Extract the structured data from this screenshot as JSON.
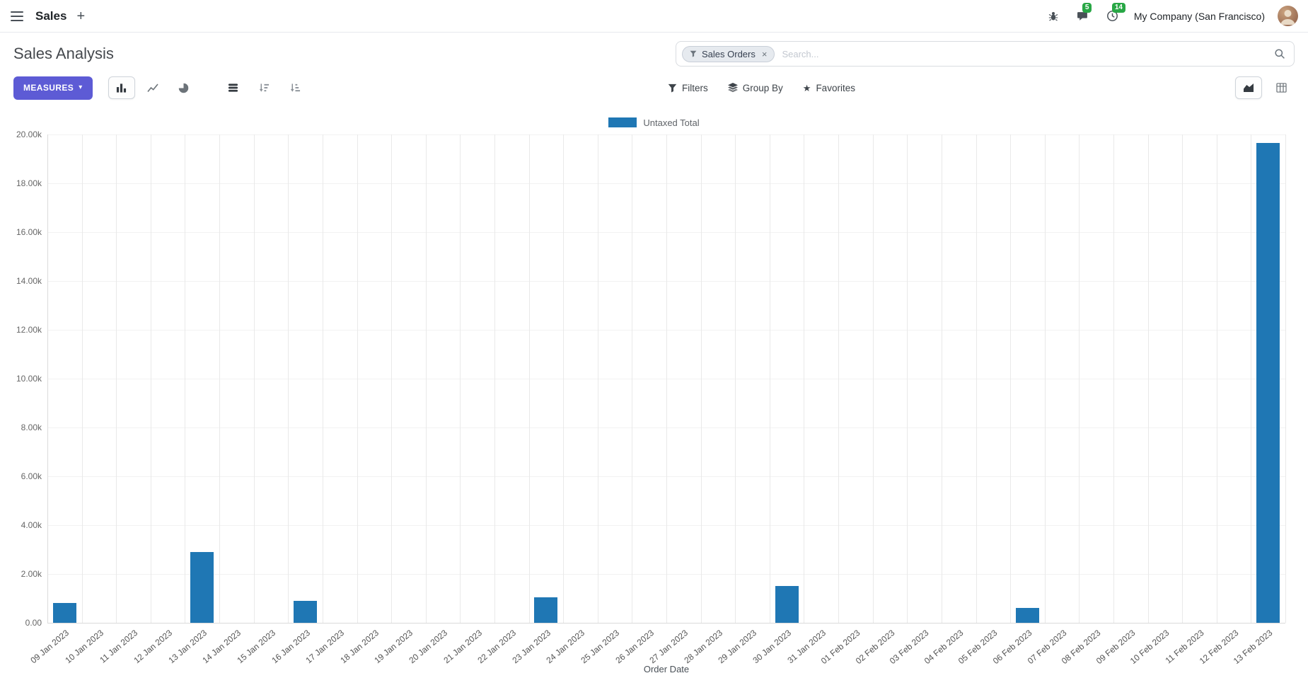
{
  "colors": {
    "primary": "#5d5bd5",
    "badge": "#28a745",
    "bar": "#1f77b4"
  },
  "glyphs": {
    "plus": "+",
    "caret_down": "▾",
    "close": "×",
    "star": "★"
  },
  "navbar": {
    "app_name": "Sales",
    "messages_badge": "5",
    "activities_badge": "14",
    "company": "My Company (San Francisco)"
  },
  "control_panel": {
    "title": "Sales Analysis",
    "search": {
      "facet_label": "Sales Orders",
      "placeholder": "Search..."
    },
    "measures_label": "MEASURES",
    "filters_label": "Filters",
    "group_by_label": "Group By",
    "favorites_label": "Favorites"
  },
  "chart_data": {
    "type": "bar",
    "title": "",
    "xlabel": "Order Date",
    "ylabel": "",
    "ylim": [
      0,
      20000
    ],
    "ytick_values": [
      0,
      2000,
      4000,
      6000,
      8000,
      10000,
      12000,
      14000,
      16000,
      18000,
      20000
    ],
    "ytick_labels": [
      "0.00",
      "2.00k",
      "4.00k",
      "6.00k",
      "8.00k",
      "10.00k",
      "12.00k",
      "14.00k",
      "16.00k",
      "18.00k",
      "20.00k"
    ],
    "legend_position": "top",
    "grid": true,
    "categories": [
      "09 Jan 2023",
      "10 Jan 2023",
      "11 Jan 2023",
      "12 Jan 2023",
      "13 Jan 2023",
      "14 Jan 2023",
      "15 Jan 2023",
      "16 Jan 2023",
      "17 Jan 2023",
      "18 Jan 2023",
      "19 Jan 2023",
      "20 Jan 2023",
      "21 Jan 2023",
      "22 Jan 2023",
      "23 Jan 2023",
      "24 Jan 2023",
      "25 Jan 2023",
      "26 Jan 2023",
      "27 Jan 2023",
      "28 Jan 2023",
      "29 Jan 2023",
      "30 Jan 2023",
      "31 Jan 2023",
      "01 Feb 2023",
      "02 Feb 2023",
      "03 Feb 2023",
      "04 Feb 2023",
      "05 Feb 2023",
      "06 Feb 2023",
      "07 Feb 2023",
      "08 Feb 2023",
      "09 Feb 2023",
      "10 Feb 2023",
      "11 Feb 2023",
      "12 Feb 2023",
      "13 Feb 2023"
    ],
    "series": [
      {
        "name": "Untaxed Total",
        "color": "#1f77b4",
        "values": [
          800,
          0,
          0,
          0,
          2900,
          0,
          0,
          900,
          0,
          0,
          0,
          0,
          0,
          0,
          1050,
          0,
          0,
          0,
          0,
          0,
          0,
          1500,
          0,
          0,
          0,
          0,
          0,
          0,
          620,
          0,
          0,
          0,
          0,
          0,
          0,
          19650
        ]
      }
    ]
  }
}
